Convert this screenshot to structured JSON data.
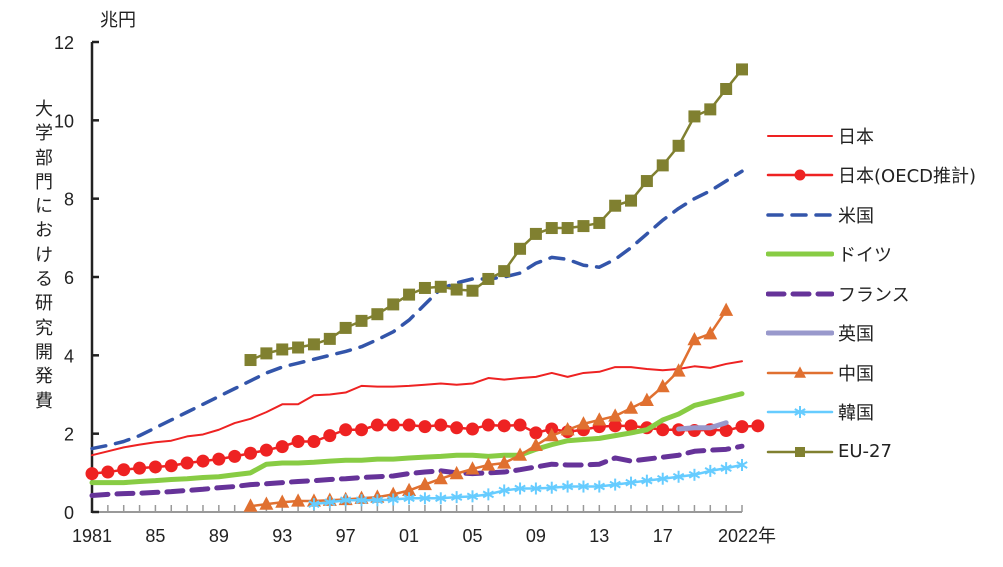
{
  "chart_data": {
    "type": "line",
    "title": "",
    "ylabel": "大学部門における研究開発費",
    "yunit": "兆円",
    "xlabel": "",
    "xunit": "年",
    "ylim": [
      0,
      12
    ],
    "xlim": [
      1981,
      2022
    ],
    "yticks": [
      0,
      2,
      4,
      6,
      8,
      10,
      12
    ],
    "ytick_labels": [
      "0",
      "2",
      "4",
      "6",
      "8",
      "10",
      "12"
    ],
    "xticks": [
      1981,
      1985,
      1989,
      1993,
      1997,
      2001,
      2005,
      2009,
      2013,
      2017,
      2022
    ],
    "xtick_labels": [
      "1981",
      "85",
      "89",
      "93",
      "97",
      "01",
      "05",
      "09",
      "13",
      "17",
      "2022年"
    ],
    "grid": false,
    "legend_position": "right",
    "series": [
      {
        "name": "日本",
        "color": "#ee2222",
        "style": "solid-thin",
        "marker": "none",
        "start": 1981,
        "values": [
          1.45,
          1.55,
          1.65,
          1.72,
          1.78,
          1.82,
          1.93,
          1.98,
          2.1,
          2.27,
          2.38,
          2.55,
          2.75,
          2.75,
          2.98,
          3.0,
          3.05,
          3.22,
          3.2,
          3.2,
          3.22,
          3.25,
          3.28,
          3.25,
          3.28,
          3.42,
          3.38,
          3.42,
          3.45,
          3.55,
          3.45,
          3.55,
          3.58,
          3.7,
          3.7,
          3.65,
          3.62,
          3.65,
          3.72,
          3.68,
          3.78,
          3.85
        ]
      },
      {
        "name": "日本(OECD推計)",
        "color": "#ee2222",
        "style": "solid",
        "marker": "circle",
        "start": 1981,
        "values": [
          0.98,
          1.02,
          1.08,
          1.12,
          1.15,
          1.18,
          1.25,
          1.3,
          1.35,
          1.42,
          1.5,
          1.58,
          1.67,
          1.8,
          1.8,
          1.95,
          2.1,
          2.1,
          2.22,
          2.22,
          2.22,
          2.18,
          2.22,
          2.15,
          2.12,
          2.22,
          2.2,
          2.22,
          2.02,
          2.12,
          2.05,
          2.1,
          2.18,
          2.2,
          2.2,
          2.15,
          2.1,
          2.1,
          2.08,
          2.1,
          2.08,
          2.18,
          2.2
        ]
      },
      {
        "name": "米国",
        "color": "#3355aa",
        "style": "dashed",
        "marker": "none",
        "start": 1981,
        "values": [
          1.62,
          1.7,
          1.8,
          1.95,
          2.15,
          2.35,
          2.55,
          2.75,
          2.95,
          3.15,
          3.35,
          3.55,
          3.7,
          3.8,
          3.9,
          4.0,
          4.1,
          4.22,
          4.4,
          4.6,
          4.9,
          5.3,
          5.7,
          5.85,
          5.95,
          5.95,
          6.0,
          6.1,
          6.35,
          6.5,
          6.45,
          6.3,
          6.25,
          6.45,
          6.75,
          7.1,
          7.45,
          7.75,
          8.0,
          8.2,
          8.45,
          8.7
        ]
      },
      {
        "name": "ドイツ",
        "color": "#88cc44",
        "style": "solid-thick",
        "marker": "none",
        "start": 1981,
        "values": [
          0.75,
          0.75,
          0.75,
          0.78,
          0.8,
          0.83,
          0.85,
          0.88,
          0.9,
          0.95,
          1.0,
          1.22,
          1.25,
          1.25,
          1.27,
          1.3,
          1.32,
          1.32,
          1.35,
          1.35,
          1.38,
          1.4,
          1.42,
          1.45,
          1.45,
          1.42,
          1.45,
          1.45,
          1.6,
          1.72,
          1.82,
          1.85,
          1.88,
          1.95,
          2.02,
          2.1,
          2.35,
          2.5,
          2.72,
          2.82,
          2.92,
          3.02
        ]
      },
      {
        "name": "フランス",
        "color": "#663399",
        "style": "dashed-thick",
        "marker": "none",
        "start": 1981,
        "values": [
          0.42,
          0.45,
          0.47,
          0.48,
          0.5,
          0.52,
          0.55,
          0.58,
          0.62,
          0.65,
          0.7,
          0.72,
          0.75,
          0.78,
          0.8,
          0.83,
          0.85,
          0.88,
          0.9,
          0.92,
          0.98,
          1.02,
          1.05,
          1.0,
          0.98,
          1.0,
          1.02,
          1.08,
          1.15,
          1.22,
          1.2,
          1.2,
          1.22,
          1.38,
          1.3,
          1.35,
          1.4,
          1.45,
          1.55,
          1.58,
          1.6,
          1.68
        ]
      },
      {
        "name": "英国",
        "color": "#9999cc",
        "style": "solid-thick",
        "marker": "none",
        "start": 2018,
        "values": [
          2.12,
          2.15,
          2.15,
          2.28
        ]
      },
      {
        "name": "中国",
        "color": "#e07030",
        "style": "solid",
        "marker": "triangle",
        "start": 1991,
        "values": [
          0.15,
          0.2,
          0.25,
          0.28,
          0.28,
          0.3,
          0.32,
          0.35,
          0.38,
          0.45,
          0.55,
          0.7,
          0.85,
          0.98,
          1.1,
          1.2,
          1.25,
          1.45,
          1.7,
          1.95,
          2.1,
          2.25,
          2.35,
          2.45,
          2.65,
          2.85,
          3.2,
          3.6,
          4.4,
          4.55,
          5.15
        ]
      },
      {
        "name": "韓国",
        "color": "#66ccff",
        "style": "solid",
        "marker": "star",
        "start": 1995,
        "values": [
          0.2,
          0.25,
          0.3,
          0.3,
          0.3,
          0.32,
          0.35,
          0.35,
          0.35,
          0.38,
          0.4,
          0.45,
          0.55,
          0.6,
          0.6,
          0.62,
          0.65,
          0.65,
          0.65,
          0.7,
          0.75,
          0.8,
          0.85,
          0.9,
          0.95,
          1.05,
          1.12,
          1.2
        ]
      },
      {
        "name": "EU-27",
        "color": "#808030",
        "style": "solid",
        "marker": "square",
        "start": 1991,
        "values": [
          3.88,
          4.05,
          4.15,
          4.2,
          4.28,
          4.42,
          4.7,
          4.88,
          5.05,
          5.3,
          5.55,
          5.72,
          5.75,
          5.68,
          5.65,
          5.95,
          6.15,
          6.72,
          7.1,
          7.25,
          7.25,
          7.3,
          7.38,
          7.82,
          7.95,
          8.45,
          8.85,
          9.35,
          10.1,
          10.28,
          10.8,
          11.3
        ]
      }
    ]
  }
}
